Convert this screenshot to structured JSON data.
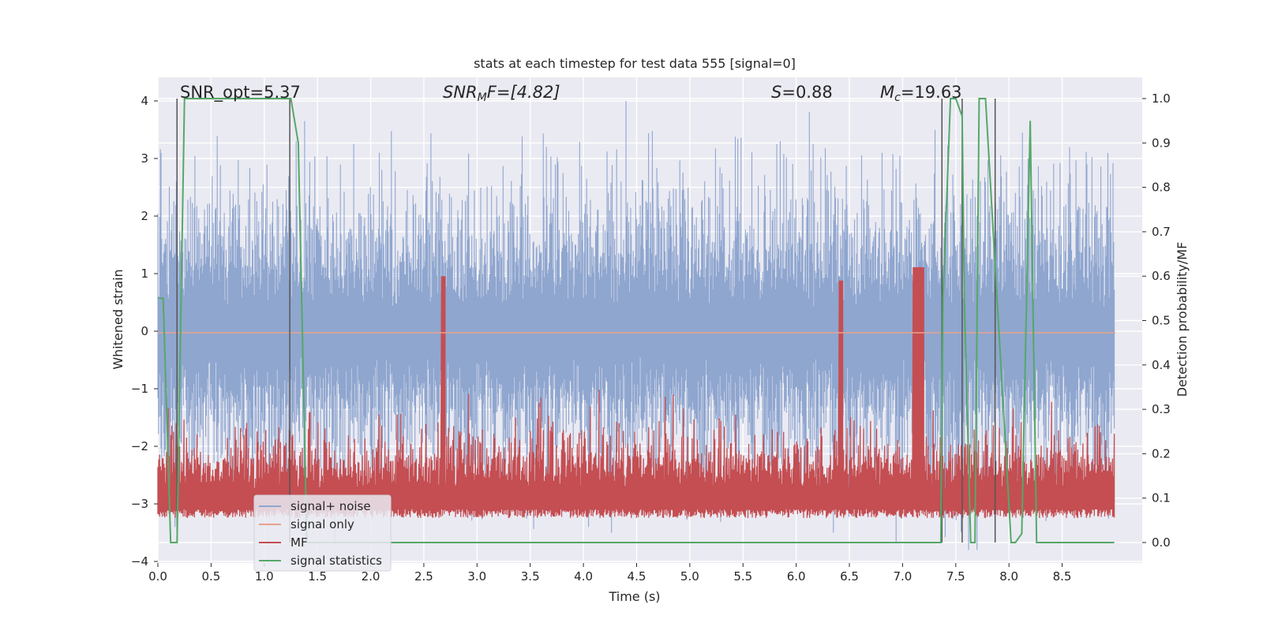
{
  "chart_data": {
    "type": "line",
    "title": "stats at each timestep for test data 555 [signal=0]",
    "xlabel": "Time (s)",
    "ylabel": "Whitened strain",
    "ylabel_right": "Detection probability/MF",
    "xlim": [
      0,
      9.0
    ],
    "ylim": [
      -4.2,
      4.4
    ],
    "ylim_right": [
      -0.05,
      1.03
    ],
    "grid": true,
    "legend_position": "lower-left",
    "xticks": [
      "0.0",
      "0.5",
      "1.0",
      "1.5",
      "2.0",
      "2.5",
      "3.0",
      "3.5",
      "4.0",
      "4.5",
      "5.0",
      "5.5",
      "6.0",
      "6.5",
      "7.0",
      "7.5",
      "8.0",
      "8.5"
    ],
    "yticks": [
      "4",
      "3",
      "2",
      "1",
      "0",
      "−1",
      "−2",
      "−3",
      "−4"
    ],
    "yticks_right": [
      "1.0",
      "0.9",
      "0.8",
      "0.7",
      "0.6",
      "0.5",
      "0.4",
      "0.3",
      "0.2",
      "0.1",
      "0.0"
    ],
    "annotations": {
      "snr_opt": "SNR_opt=5.37",
      "snr_mf_label": "SNR",
      "snr_mf_sub": "M",
      "snr_mf_rest": "F=[4.82]",
      "s_label": "S",
      "s_rest": "=0.88",
      "mc_label": "M",
      "mc_sub": "c",
      "mc_rest": "=19.63"
    },
    "legend": [
      {
        "name": "signal+ noise",
        "color": "#8fa6cf"
      },
      {
        "name": "signal only",
        "color": "#e8a38a"
      },
      {
        "name": "MF",
        "color": "#c44e52"
      },
      {
        "name": "signal statistics",
        "color": "#55a868"
      }
    ],
    "series": [
      {
        "name": "signal statistics",
        "axis": "right",
        "x": [
          0.0,
          0.05,
          0.12,
          0.18,
          0.25,
          1.25,
          1.32,
          1.4,
          7.36,
          7.38,
          7.45,
          7.5,
          7.56,
          7.58,
          7.64,
          7.68,
          7.72,
          7.78,
          7.9,
          8.02,
          8.06,
          8.12,
          8.2,
          8.26,
          8.99
        ],
        "values": [
          0.55,
          0.55,
          0.0,
          0.0,
          1.0,
          1.0,
          0.9,
          0.0,
          0.0,
          0.55,
          1.0,
          1.0,
          0.96,
          0.55,
          0.0,
          0.0,
          1.0,
          1.0,
          0.5,
          0.0,
          0.0,
          0.02,
          0.95,
          0.0,
          0.0
        ]
      },
      {
        "name": "signal only",
        "axis": "left",
        "x": [
          0.0,
          9.0
        ],
        "values": [
          0.0,
          0.0
        ]
      }
    ],
    "detection_lines_x": [
      0.18,
      1.24,
      7.37,
      7.56,
      7.87
    ],
    "noise_envelope": {
      "typical_max": 2.0,
      "typical_min": -2.0,
      "peak_max": 4.0,
      "peak_min": -3.7
    },
    "mf_band": {
      "min": 0.05,
      "max": 1.0,
      "typical": 0.35
    }
  }
}
